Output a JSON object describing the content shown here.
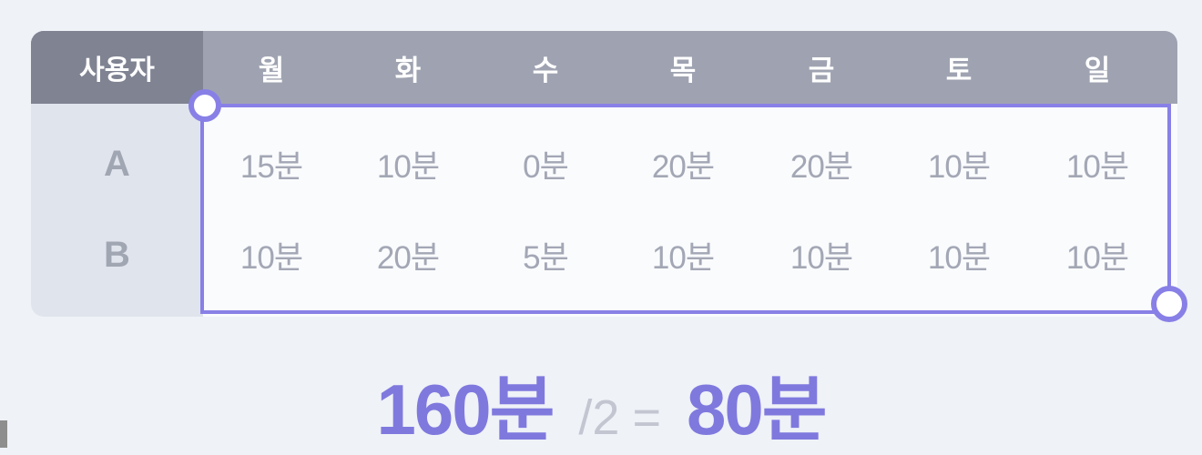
{
  "table": {
    "header_user": "사용자",
    "days": [
      "월",
      "화",
      "수",
      "목",
      "금",
      "토",
      "일"
    ],
    "rows": [
      {
        "user": "A",
        "values": [
          "15분",
          "10분",
          "0분",
          "20분",
          "20분",
          "10분",
          "10분"
        ]
      },
      {
        "user": "B",
        "values": [
          "10분",
          "20분",
          "5분",
          "10분",
          "10분",
          "10분",
          "10분"
        ]
      }
    ]
  },
  "formula": {
    "total": "160분",
    "divisor": "/2",
    "equals": "=",
    "result": "80분"
  },
  "colors": {
    "accent": "#8880e6",
    "header": "#9fa3b1",
    "header_user": "#7f8392",
    "text_muted": "#a3a7b5"
  }
}
